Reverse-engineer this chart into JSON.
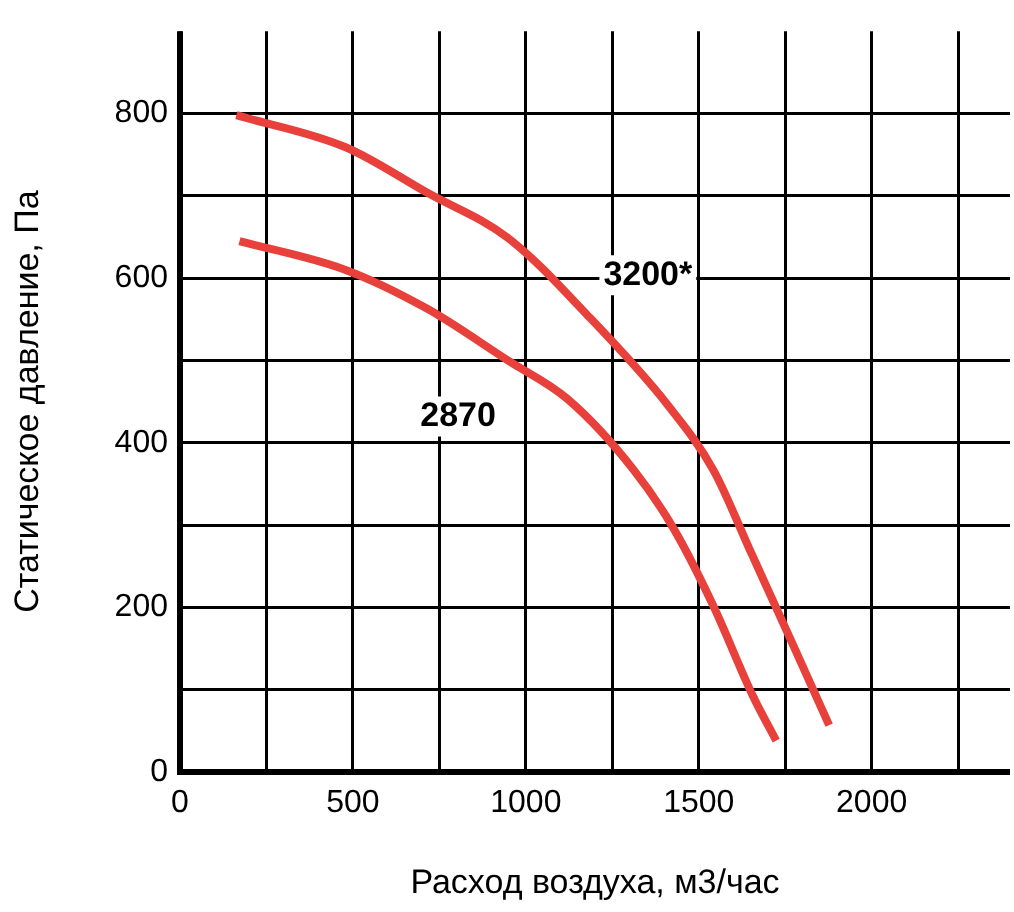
{
  "chart_data": {
    "type": "line",
    "xlabel": "Расход воздуха, м3/час",
    "ylabel": "Статическое давление, Па",
    "xlim": [
      0,
      2400
    ],
    "ylim": [
      0,
      900
    ],
    "xticks": [
      0,
      {
        "value": 250,
        "label": null
      },
      500,
      {
        "value": 750,
        "label": null
      },
      1000,
      {
        "value": 1250,
        "label": null
      },
      1500,
      {
        "value": 1750,
        "label": null
      },
      2000,
      {
        "value": 2250,
        "label": null
      }
    ],
    "yticks": [
      0,
      {
        "value": 100,
        "label": null
      },
      200,
      {
        "value": 300,
        "label": null
      },
      400,
      {
        "value": 500,
        "label": null
      },
      600,
      {
        "value": 700,
        "label": null
      },
      800
    ],
    "grid": true,
    "legend": false,
    "marker": "none",
    "line_style": "solid",
    "series": [
      {
        "name": "3200*",
        "color": "#e8403a",
        "x": [
          163,
          479,
          714,
          948,
          1178,
          1412,
          1542,
          1653,
          1772,
          1877
        ],
        "values": [
          798,
          759,
          704,
          649,
          555,
          445,
          367,
          265,
          155,
          57
        ]
      },
      {
        "name": "2870",
        "color": "#e8403a",
        "x": [
          172,
          479,
          714,
          948,
          1121,
          1312,
          1427,
          1542,
          1657,
          1724
        ],
        "values": [
          645,
          610,
          563,
          500,
          453,
          367,
          296,
          202,
          92,
          38
        ]
      }
    ]
  }
}
